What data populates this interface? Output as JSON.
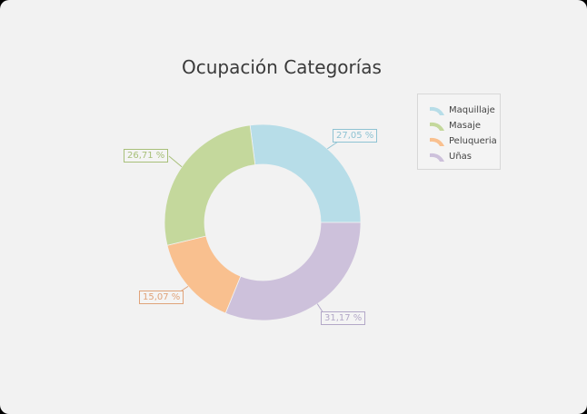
{
  "chart_data": {
    "type": "pie",
    "variant": "donut",
    "title": "Ocupación Categorías",
    "categories": [
      "Maquillaje",
      "Masaje",
      "Peluqueria",
      "Uñas"
    ],
    "values": [
      27.05,
      26.71,
      15.07,
      31.17
    ],
    "labels": [
      "27,05 %",
      "26,71 %",
      "15,07 %",
      "31,17 %"
    ],
    "colors": [
      "#b7dde8",
      "#c4d89c",
      "#f9c08f",
      "#cdc1db"
    ],
    "label_colors": [
      "#8fc3d3",
      "#a8c07a",
      "#e0a37a",
      "#b3a8c8"
    ],
    "legend_position": "top-right"
  },
  "title": "Ocupación Categorías",
  "legend": {
    "items": [
      {
        "label": "Maquillaje",
        "color": "#b7dde8"
      },
      {
        "label": "Masaje",
        "color": "#c4d89c"
      },
      {
        "label": "Peluqueria",
        "color": "#f9c08f"
      },
      {
        "label": "Uñas",
        "color": "#cdc1db"
      }
    ]
  }
}
